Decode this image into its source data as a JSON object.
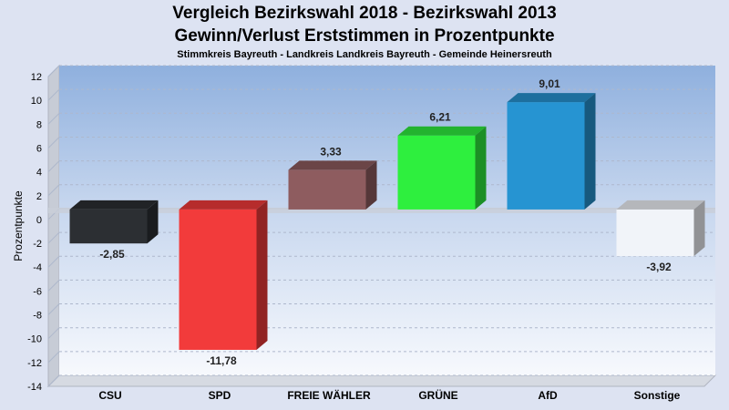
{
  "title": "Vergleich Bezirkswahl 2018 - Bezirkswahl 2013",
  "subtitle_line2": "Gewinn/Verlust Erststimmen in Prozentpunkte",
  "subtitle_line3": "Stimmkreis Bayreuth - Landkreis Landkreis Bayreuth - Gemeinde Heinersreuth",
  "chart_data": {
    "type": "bar",
    "categories": [
      "CSU",
      "SPD",
      "FREIE WÄHLER",
      "GRÜNE",
      "AfD",
      "Sonstige"
    ],
    "values": [
      -2.85,
      -11.78,
      3.33,
      6.21,
      9.01,
      -3.92
    ],
    "value_labels": [
      "-2,85",
      "-11,78",
      "3,33",
      "6,21",
      "9,01",
      "-3,92"
    ],
    "colors": [
      "#2c2f33",
      "#f23b3b",
      "#8e5c5f",
      "#2eef3e",
      "#2694d2",
      "#f1f4f9"
    ],
    "ylabel": "Prozentpunkte",
    "ylim": [
      -14,
      12
    ],
    "yticks": [
      12,
      10,
      8,
      6,
      4,
      2,
      0,
      -2,
      -4,
      -6,
      -8,
      -10,
      -12,
      -14
    ],
    "grid": true
  }
}
